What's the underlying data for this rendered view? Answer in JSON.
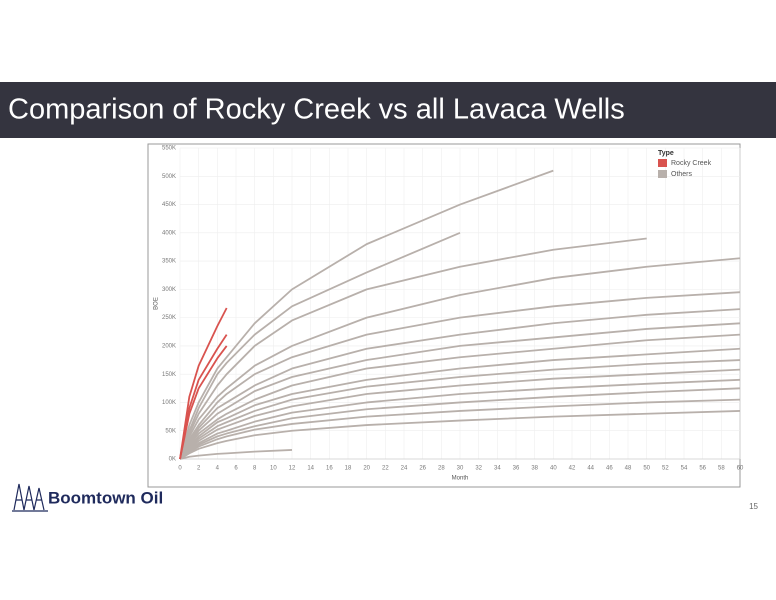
{
  "slide": {
    "title": "Comparison of Rocky Creek vs all Lavaca Wells",
    "logo": "Boomtown Oil",
    "page_number": "15"
  },
  "chart_data": {
    "type": "line",
    "x_label": "Month",
    "y_label": "BOE",
    "legend_title": "Type",
    "legend": "top-right",
    "grid": true,
    "x": [
      0,
      1,
      2,
      4,
      5,
      8,
      12,
      20,
      30,
      40,
      50,
      60
    ],
    "xlim": [
      0,
      60
    ],
    "xticks": [
      0,
      2,
      4,
      6,
      8,
      10,
      12,
      14,
      16,
      18,
      20,
      22,
      24,
      26,
      28,
      30,
      32,
      34,
      36,
      38,
      40,
      42,
      44,
      46,
      48,
      50,
      52,
      54,
      56,
      58,
      60
    ],
    "ylim": [
      0,
      550000
    ],
    "yticks": [
      {
        "value": 0,
        "label": "0K"
      },
      {
        "value": 50000,
        "label": "50K"
      },
      {
        "value": 100000,
        "label": "100K"
      },
      {
        "value": 150000,
        "label": "150K"
      },
      {
        "value": 200000,
        "label": "200K"
      },
      {
        "value": 250000,
        "label": "250K"
      },
      {
        "value": 300000,
        "label": "300K"
      },
      {
        "value": 350000,
        "label": "350K"
      },
      {
        "value": 400000,
        "label": "400K"
      },
      {
        "value": 450000,
        "label": "450K"
      },
      {
        "value": 500000,
        "label": "500K"
      },
      {
        "value": 550000,
        "label": "550K"
      }
    ],
    "series": [
      {
        "name": "Rocky Creek",
        "color": "#d9534f",
        "values": [
          [
            0,
            110000,
            165000,
            235000,
            267000,
            null,
            null,
            null,
            null,
            null,
            null,
            null
          ],
          [
            0,
            90000,
            140000,
            195000,
            220000,
            null,
            null,
            null,
            null,
            null,
            null,
            null
          ],
          [
            0,
            80000,
            125000,
            178000,
            200000,
            null,
            null,
            null,
            null,
            null,
            null,
            null
          ]
        ]
      },
      {
        "name": "Others",
        "color": "#b8b0ab",
        "values": [
          [
            0,
            60000,
            100000,
            160000,
            180000,
            240000,
            300000,
            380000,
            450000,
            510000,
            null,
            null
          ],
          [
            0,
            50000,
            90000,
            150000,
            170000,
            220000,
            270000,
            330000,
            400000,
            null,
            null,
            null
          ],
          [
            0,
            45000,
            80000,
            130000,
            150000,
            200000,
            245000,
            300000,
            340000,
            370000,
            390000,
            null
          ],
          [
            0,
            40000,
            70000,
            110000,
            125000,
            165000,
            200000,
            250000,
            290000,
            320000,
            340000,
            355000
          ],
          [
            0,
            35000,
            60000,
            100000,
            115000,
            150000,
            180000,
            220000,
            250000,
            270000,
            285000,
            295000
          ],
          [
            0,
            30000,
            55000,
            90000,
            100000,
            130000,
            160000,
            195000,
            220000,
            240000,
            255000,
            265000
          ],
          [
            0,
            28000,
            50000,
            80000,
            90000,
            120000,
            145000,
            175000,
            200000,
            215000,
            230000,
            240000
          ],
          [
            0,
            25000,
            45000,
            70000,
            80000,
            105000,
            130000,
            160000,
            180000,
            195000,
            210000,
            220000
          ],
          [
            0,
            22000,
            40000,
            65000,
            72000,
            95000,
            115000,
            140000,
            160000,
            175000,
            185000,
            195000
          ],
          [
            0,
            20000,
            36000,
            58000,
            65000,
            85000,
            105000,
            128000,
            145000,
            158000,
            168000,
            175000
          ],
          [
            0,
            18000,
            32000,
            52000,
            58000,
            76000,
            93000,
            115000,
            130000,
            142000,
            150000,
            158000
          ],
          [
            0,
            16000,
            28000,
            45000,
            50000,
            66000,
            82000,
            100000,
            115000,
            125000,
            133000,
            140000
          ],
          [
            0,
            14000,
            25000,
            40000,
            45000,
            58000,
            72000,
            88000,
            100000,
            110000,
            118000,
            125000
          ],
          [
            0,
            12000,
            22000,
            35000,
            40000,
            52000,
            62000,
            75000,
            85000,
            93000,
            100000,
            105000
          ],
          [
            0,
            10000,
            18000,
            28000,
            32000,
            42000,
            50000,
            60000,
            68000,
            75000,
            80000,
            85000
          ],
          [
            0,
            4000,
            6000,
            9000,
            10000,
            13000,
            16000,
            null,
            null,
            null,
            null,
            null
          ]
        ]
      }
    ]
  }
}
